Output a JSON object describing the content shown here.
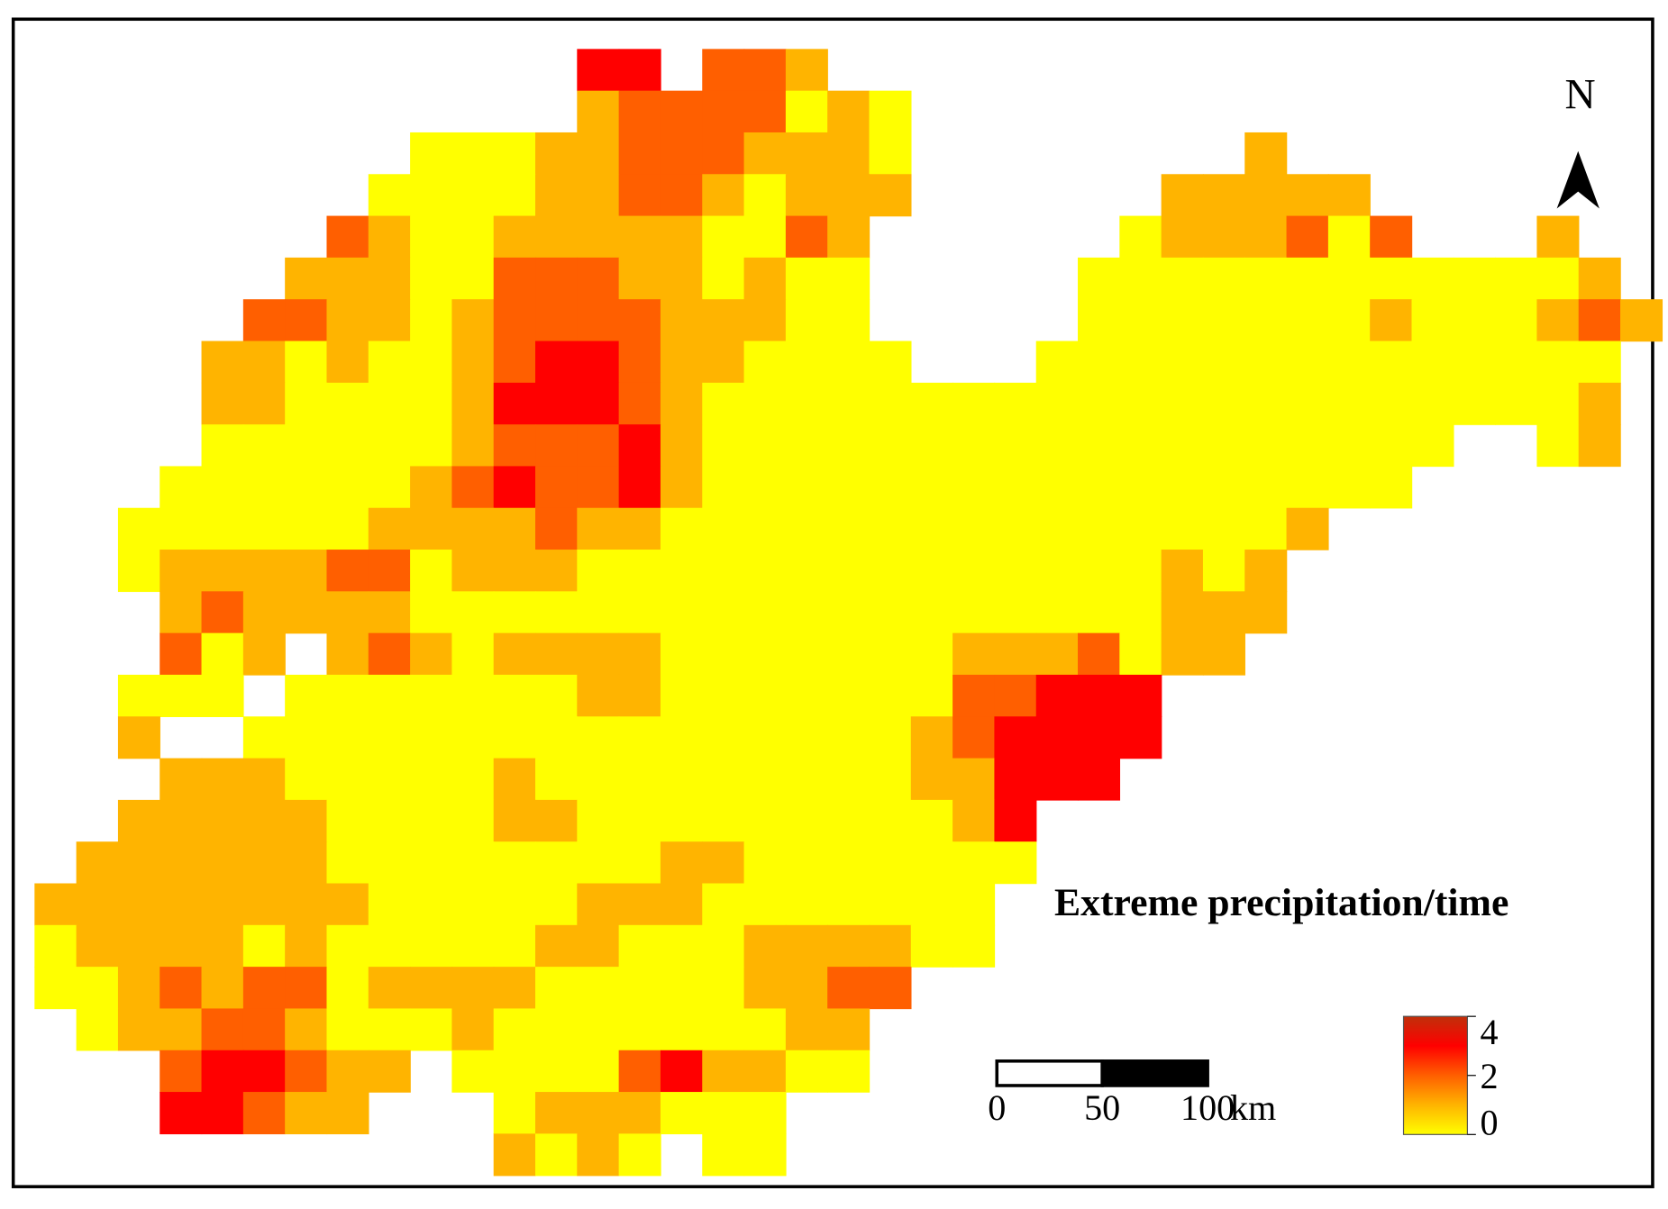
{
  "map": {
    "north": "N",
    "title": "Extreme precipitation/time",
    "scale_bar": {
      "ticks": [
        0,
        50,
        100
      ],
      "unit": "km"
    },
    "legend": {
      "range": [
        0,
        4
      ],
      "ticks": [
        0,
        2,
        4
      ],
      "color_stops": [
        {
          "value": 0,
          "color": "#ffff00"
        },
        {
          "value": 1,
          "color": "#ffb400"
        },
        {
          "value": 2,
          "color": "#ff5f00"
        },
        {
          "value": 3,
          "color": "#ff0000"
        },
        {
          "value": 4,
          "color": "#c0300a"
        }
      ]
    },
    "cells": [
      [
        null,
        null,
        null,
        null,
        null,
        null,
        null,
        null,
        null,
        null,
        null,
        null,
        null,
        3,
        3,
        null,
        2,
        2,
        1,
        null,
        null,
        null,
        null,
        null,
        null,
        null,
        null,
        null,
        null,
        null,
        null,
        null,
        null,
        null,
        null,
        null,
        null,
        null,
        null
      ],
      [
        null,
        null,
        null,
        null,
        null,
        null,
        null,
        null,
        null,
        null,
        null,
        null,
        null,
        1,
        2,
        2,
        2,
        2,
        0,
        1,
        0,
        null,
        null,
        null,
        null,
        null,
        null,
        null,
        null,
        null,
        null,
        null,
        null,
        null,
        null,
        null,
        null,
        null,
        null
      ],
      [
        null,
        null,
        null,
        null,
        null,
        null,
        null,
        null,
        null,
        0,
        0,
        0,
        1,
        1,
        2,
        2,
        2,
        1,
        1,
        1,
        0,
        null,
        null,
        null,
        null,
        null,
        null,
        null,
        null,
        1,
        null,
        null,
        null,
        null,
        null,
        null,
        null,
        null,
        null
      ],
      [
        null,
        null,
        null,
        null,
        null,
        null,
        null,
        null,
        0,
        0,
        0,
        0,
        1,
        1,
        2,
        2,
        1,
        0,
        1,
        1,
        1,
        null,
        null,
        null,
        null,
        null,
        null,
        1,
        1,
        1,
        1,
        1,
        null,
        null,
        null,
        null,
        null,
        null,
        null
      ],
      [
        null,
        null,
        null,
        null,
        null,
        null,
        null,
        2,
        1,
        0,
        0,
        1,
        1,
        1,
        1,
        1,
        0,
        0,
        2,
        1,
        null,
        null,
        null,
        null,
        null,
        null,
        0,
        1,
        1,
        1,
        2,
        0,
        2,
        null,
        null,
        null,
        1,
        null,
        null
      ],
      [
        null,
        null,
        null,
        null,
        null,
        null,
        1,
        1,
        1,
        0,
        0,
        2,
        2,
        2,
        1,
        1,
        0,
        1,
        0,
        0,
        null,
        null,
        null,
        null,
        null,
        0,
        0,
        0,
        0,
        0,
        0,
        0,
        0,
        0,
        0,
        0,
        0,
        1,
        null
      ],
      [
        null,
        null,
        null,
        null,
        null,
        2,
        2,
        1,
        1,
        0,
        1,
        2,
        2,
        2,
        2,
        1,
        1,
        1,
        0,
        0,
        null,
        null,
        null,
        null,
        null,
        0,
        0,
        0,
        0,
        0,
        0,
        0,
        1,
        0,
        0,
        0,
        1,
        2,
        1
      ],
      [
        null,
        null,
        null,
        null,
        1,
        1,
        0,
        1,
        0,
        0,
        1,
        2,
        3,
        3,
        2,
        1,
        1,
        0,
        0,
        0,
        0,
        null,
        null,
        null,
        0,
        0,
        0,
        0,
        0,
        0,
        0,
        0,
        0,
        0,
        0,
        0,
        0,
        0,
        null
      ],
      [
        null,
        null,
        null,
        null,
        1,
        1,
        0,
        0,
        0,
        0,
        1,
        3,
        3,
        3,
        2,
        1,
        0,
        0,
        0,
        0,
        0,
        0,
        0,
        0,
        0,
        0,
        0,
        0,
        0,
        0,
        0,
        0,
        0,
        0,
        0,
        0,
        0,
        1,
        null
      ],
      [
        null,
        null,
        null,
        null,
        0,
        0,
        0,
        0,
        0,
        0,
        1,
        2,
        2,
        2,
        3,
        1,
        0,
        0,
        0,
        0,
        0,
        0,
        0,
        0,
        0,
        0,
        0,
        0,
        0,
        0,
        0,
        0,
        0,
        0,
        null,
        null,
        0,
        1,
        null
      ],
      [
        null,
        null,
        null,
        0,
        0,
        0,
        0,
        0,
        0,
        1,
        2,
        3,
        2,
        2,
        3,
        1,
        0,
        0,
        0,
        0,
        0,
        0,
        0,
        0,
        0,
        0,
        0,
        0,
        0,
        0,
        0,
        0,
        0,
        null,
        null,
        null,
        null,
        null,
        null
      ],
      [
        null,
        null,
        0,
        0,
        0,
        0,
        0,
        0,
        1,
        1,
        1,
        1,
        2,
        1,
        1,
        0,
        0,
        0,
        0,
        0,
        0,
        0,
        0,
        0,
        0,
        0,
        0,
        0,
        0,
        0,
        1,
        null,
        null,
        null,
        null,
        null,
        null,
        null,
        null
      ],
      [
        null,
        null,
        0,
        1,
        1,
        1,
        1,
        2,
        2,
        0,
        1,
        1,
        1,
        0,
        0,
        0,
        0,
        0,
        0,
        0,
        0,
        0,
        0,
        0,
        0,
        0,
        0,
        1,
        0,
        1,
        null,
        null,
        null,
        null,
        null,
        null,
        null,
        null,
        null
      ],
      [
        null,
        null,
        null,
        1,
        2,
        1,
        1,
        1,
        1,
        0,
        0,
        0,
        0,
        0,
        0,
        0,
        0,
        0,
        0,
        0,
        0,
        0,
        0,
        0,
        0,
        0,
        0,
        1,
        1,
        1,
        null,
        null,
        null,
        null,
        null,
        null,
        null,
        null,
        null
      ],
      [
        null,
        null,
        null,
        2,
        0,
        1,
        null,
        1,
        2,
        1,
        0,
        1,
        1,
        1,
        1,
        0,
        0,
        0,
        0,
        0,
        0,
        0,
        1,
        1,
        1,
        2,
        0,
        1,
        1,
        null,
        null,
        null,
        null,
        null,
        null,
        null,
        null,
        null,
        null
      ],
      [
        null,
        null,
        0,
        0,
        0,
        null,
        0,
        0,
        0,
        0,
        0,
        0,
        0,
        1,
        1,
        0,
        0,
        0,
        0,
        0,
        0,
        0,
        2,
        2,
        3,
        3,
        3,
        null,
        null,
        null,
        null,
        null,
        null,
        null,
        null,
        null,
        null,
        null,
        null
      ],
      [
        null,
        null,
        1,
        null,
        null,
        0,
        0,
        0,
        0,
        0,
        0,
        0,
        0,
        0,
        0,
        0,
        0,
        0,
        0,
        0,
        0,
        1,
        2,
        3,
        3,
        3,
        3,
        null,
        null,
        null,
        null,
        null,
        null,
        null,
        null,
        null,
        null,
        null,
        null
      ],
      [
        null,
        null,
        null,
        1,
        1,
        1,
        0,
        0,
        0,
        0,
        0,
        1,
        0,
        0,
        0,
        0,
        0,
        0,
        0,
        0,
        0,
        1,
        1,
        3,
        3,
        3,
        null,
        null,
        null,
        null,
        null,
        null,
        null,
        null,
        null,
        null,
        null,
        null,
        null
      ],
      [
        null,
        null,
        1,
        1,
        1,
        1,
        1,
        0,
        0,
        0,
        0,
        1,
        1,
        0,
        0,
        0,
        0,
        0,
        0,
        0,
        0,
        0,
        1,
        3,
        null,
        null,
        null,
        null,
        null,
        null,
        null,
        null,
        null,
        null,
        null,
        null,
        null,
        null,
        null
      ],
      [
        null,
        1,
        1,
        1,
        1,
        1,
        1,
        0,
        0,
        0,
        0,
        0,
        0,
        0,
        0,
        1,
        1,
        0,
        0,
        0,
        0,
        0,
        0,
        0,
        null,
        null,
        null,
        null,
        null,
        null,
        null,
        null,
        null,
        null,
        null,
        null,
        null,
        null,
        null
      ],
      [
        1,
        1,
        1,
        1,
        1,
        1,
        1,
        1,
        0,
        0,
        0,
        0,
        0,
        1,
        1,
        1,
        0,
        0,
        0,
        0,
        0,
        0,
        0,
        null,
        null,
        null,
        null,
        null,
        null,
        null,
        null,
        null,
        null,
        null,
        null,
        null,
        null,
        null,
        null
      ],
      [
        0,
        1,
        1,
        1,
        1,
        0,
        1,
        0,
        0,
        0,
        0,
        0,
        1,
        1,
        0,
        0,
        0,
        1,
        1,
        1,
        1,
        0,
        0,
        null,
        null,
        null,
        null,
        null,
        null,
        null,
        null,
        null,
        null,
        null,
        null,
        null,
        null,
        null,
        null
      ],
      [
        0,
        0,
        1,
        2,
        1,
        2,
        2,
        0,
        1,
        1,
        1,
        1,
        0,
        0,
        0,
        0,
        0,
        1,
        1,
        2,
        2,
        null,
        null,
        null,
        null,
        null,
        null,
        null,
        null,
        null,
        null,
        null,
        null,
        null,
        null,
        null,
        null,
        null,
        null
      ],
      [
        null,
        0,
        1,
        1,
        2,
        2,
        1,
        0,
        0,
        0,
        1,
        0,
        0,
        0,
        0,
        0,
        0,
        0,
        1,
        1,
        null,
        null,
        null,
        null,
        null,
        null,
        null,
        null,
        null,
        null,
        null,
        null,
        null,
        null,
        null,
        null,
        null,
        null,
        null
      ],
      [
        null,
        null,
        null,
        2,
        3,
        3,
        2,
        1,
        1,
        null,
        0,
        0,
        0,
        0,
        2,
        3,
        1,
        1,
        0,
        0,
        null,
        null,
        null,
        null,
        null,
        null,
        null,
        null,
        null,
        null,
        null,
        null,
        null,
        null,
        null,
        null,
        null,
        null,
        null
      ],
      [
        null,
        null,
        null,
        3,
        3,
        2,
        1,
        1,
        null,
        null,
        null,
        0,
        1,
        1,
        1,
        0,
        0,
        0,
        null,
        null,
        null,
        null,
        null,
        null,
        null,
        null,
        null,
        null,
        null,
        null,
        null,
        null,
        null,
        null,
        null,
        null,
        null,
        null,
        null
      ],
      [
        null,
        null,
        null,
        null,
        null,
        null,
        null,
        null,
        null,
        null,
        null,
        1,
        0,
        1,
        0,
        null,
        0,
        0,
        null,
        null,
        null,
        null,
        null,
        null,
        null,
        null,
        null,
        null,
        null,
        null,
        null,
        null,
        null,
        null,
        null,
        null,
        null,
        null,
        null
      ]
    ]
  }
}
